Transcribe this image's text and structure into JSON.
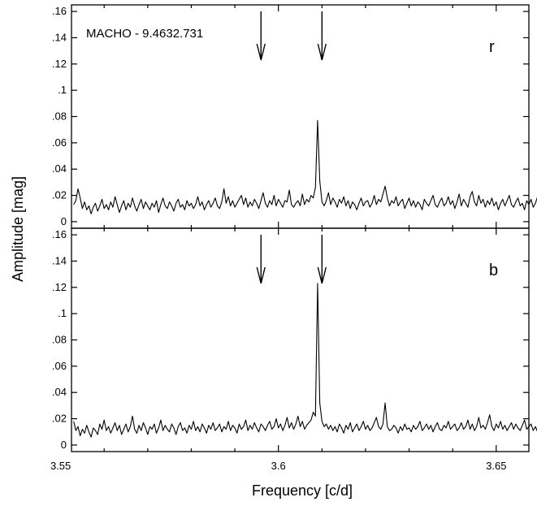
{
  "chart_data": {
    "type": "line",
    "xlabel": "Frequency [c/d]",
    "ylabel": "Amplitude [mag]",
    "xlim": [
      3.5525,
      3.6575
    ],
    "x_ticks": [
      3.55,
      3.6,
      3.65
    ],
    "x_tick_labels": [
      "3.55",
      "3.6",
      "3.65"
    ],
    "grid": false,
    "panels": [
      {
        "id": "top",
        "band_label": "r",
        "annotation": "MACHO - 9.4632.731",
        "ylim": [
          -0.005,
          0.165
        ],
        "y_ticks": [
          0,
          0.02,
          0.04,
          0.06,
          0.08,
          0.1,
          0.12,
          0.14,
          0.16
        ],
        "y_tick_labels": [
          "0",
          ".02",
          ".04",
          ".06",
          ".08",
          ".1",
          ".12",
          ".14",
          ".16"
        ],
        "arrows_x": [
          3.596,
          3.61
        ],
        "series": [
          {
            "x_start": 3.553,
            "x_step": 0.0005,
            "values": [
              0.013,
              0.016,
              0.025,
              0.018,
              0.01,
              0.015,
              0.009,
              0.012,
              0.006,
              0.011,
              0.014,
              0.008,
              0.012,
              0.017,
              0.01,
              0.013,
              0.009,
              0.015,
              0.011,
              0.019,
              0.013,
              0.007,
              0.012,
              0.016,
              0.009,
              0.014,
              0.011,
              0.018,
              0.012,
              0.008,
              0.013,
              0.017,
              0.01,
              0.015,
              0.012,
              0.009,
              0.014,
              0.011,
              0.016,
              0.007,
              0.013,
              0.018,
              0.012,
              0.01,
              0.015,
              0.012,
              0.008,
              0.014,
              0.017,
              0.011,
              0.013,
              0.009,
              0.016,
              0.012,
              0.014,
              0.01,
              0.013,
              0.019,
              0.012,
              0.015,
              0.009,
              0.013,
              0.016,
              0.011,
              0.014,
              0.018,
              0.012,
              0.01,
              0.015,
              0.025,
              0.014,
              0.019,
              0.012,
              0.016,
              0.011,
              0.014,
              0.017,
              0.02,
              0.013,
              0.018,
              0.011,
              0.015,
              0.012,
              0.017,
              0.014,
              0.01,
              0.016,
              0.022,
              0.014,
              0.011,
              0.016,
              0.013,
              0.02,
              0.012,
              0.017,
              0.014,
              0.011,
              0.016,
              0.015,
              0.024,
              0.013,
              0.011,
              0.014,
              0.016,
              0.012,
              0.021,
              0.013,
              0.017,
              0.015,
              0.02,
              0.018,
              0.026,
              0.077,
              0.031,
              0.015,
              0.012,
              0.016,
              0.022,
              0.013,
              0.018,
              0.015,
              0.011,
              0.017,
              0.014,
              0.019,
              0.012,
              0.016,
              0.01,
              0.015,
              0.013,
              0.009,
              0.014,
              0.018,
              0.012,
              0.015,
              0.016,
              0.011,
              0.014,
              0.02,
              0.013,
              0.017,
              0.015,
              0.021,
              0.027,
              0.018,
              0.012,
              0.016,
              0.014,
              0.019,
              0.012,
              0.015,
              0.017,
              0.01,
              0.014,
              0.018,
              0.012,
              0.016,
              0.011,
              0.015,
              0.013,
              0.009,
              0.017,
              0.014,
              0.012,
              0.016,
              0.02,
              0.013,
              0.011,
              0.015,
              0.018,
              0.012,
              0.014,
              0.019,
              0.013,
              0.016,
              0.01,
              0.015,
              0.021,
              0.012,
              0.017,
              0.014,
              0.011,
              0.019,
              0.023,
              0.015,
              0.012,
              0.02,
              0.014,
              0.017,
              0.011,
              0.016,
              0.013,
              0.018,
              0.012,
              0.015,
              0.009,
              0.014,
              0.017,
              0.012,
              0.016,
              0.02,
              0.013,
              0.011,
              0.015,
              0.018,
              0.012,
              0.014,
              0.009,
              0.016,
              0.013,
              0.017,
              0.011,
              0.014,
              0.019,
              0.012,
              0.015,
              0.022,
              0.013,
              0.017,
              0.011,
              0.014,
              0.025,
              0.013,
              0.018,
              0.012,
              0.016,
              0.01,
              0.027,
              0.014,
              0.009,
              0.019,
              0.013,
              0.031,
              0.016,
              0.012,
              0.018,
              0.01,
              0.015,
              0.013,
              0.017,
              0.011,
              0.014,
              0.021,
              0.012,
              0.016,
              0.013,
              0.019,
              0.011,
              0.014,
              0.012,
              0.015
            ]
          }
        ]
      },
      {
        "id": "bottom",
        "band_label": "b",
        "annotation": "",
        "ylim": [
          -0.005,
          0.165
        ],
        "y_ticks": [
          0,
          0.02,
          0.04,
          0.06,
          0.08,
          0.1,
          0.12,
          0.14,
          0.16
        ],
        "y_tick_labels": [
          "0",
          ".02",
          ".04",
          ".06",
          ".08",
          ".1",
          ".12",
          ".14",
          ".16"
        ],
        "arrows_x": [
          3.596,
          3.61
        ],
        "series": [
          {
            "x_start": 3.553,
            "x_step": 0.0005,
            "values": [
              0.018,
              0.011,
              0.014,
              0.007,
              0.012,
              0.009,
              0.015,
              0.01,
              0.006,
              0.013,
              0.011,
              0.008,
              0.016,
              0.012,
              0.019,
              0.011,
              0.014,
              0.009,
              0.013,
              0.017,
              0.011,
              0.015,
              0.008,
              0.012,
              0.016,
              0.01,
              0.014,
              0.022,
              0.012,
              0.009,
              0.015,
              0.011,
              0.017,
              0.013,
              0.008,
              0.014,
              0.012,
              0.016,
              0.009,
              0.013,
              0.019,
              0.011,
              0.015,
              0.012,
              0.01,
              0.016,
              0.013,
              0.008,
              0.014,
              0.017,
              0.011,
              0.013,
              0.009,
              0.015,
              0.012,
              0.018,
              0.011,
              0.014,
              0.01,
              0.016,
              0.013,
              0.009,
              0.015,
              0.012,
              0.017,
              0.011,
              0.013,
              0.016,
              0.01,
              0.014,
              0.012,
              0.018,
              0.011,
              0.015,
              0.013,
              0.009,
              0.016,
              0.012,
              0.014,
              0.019,
              0.011,
              0.015,
              0.012,
              0.017,
              0.013,
              0.01,
              0.016,
              0.014,
              0.011,
              0.015,
              0.018,
              0.012,
              0.014,
              0.02,
              0.013,
              0.016,
              0.011,
              0.015,
              0.021,
              0.013,
              0.017,
              0.012,
              0.016,
              0.022,
              0.014,
              0.018,
              0.012,
              0.015,
              0.017,
              0.019,
              0.025,
              0.022,
              0.123,
              0.032,
              0.018,
              0.014,
              0.016,
              0.012,
              0.015,
              0.011,
              0.014,
              0.01,
              0.016,
              0.013,
              0.009,
              0.015,
              0.012,
              0.017,
              0.01,
              0.013,
              0.016,
              0.011,
              0.014,
              0.018,
              0.012,
              0.015,
              0.011,
              0.013,
              0.017,
              0.021,
              0.014,
              0.012,
              0.016,
              0.032,
              0.014,
              0.011,
              0.012,
              0.015,
              0.013,
              0.009,
              0.014,
              0.011,
              0.016,
              0.012,
              0.013,
              0.01,
              0.015,
              0.012,
              0.014,
              0.018,
              0.011,
              0.013,
              0.016,
              0.012,
              0.015,
              0.01,
              0.014,
              0.017,
              0.012,
              0.011,
              0.015,
              0.013,
              0.018,
              0.012,
              0.014,
              0.016,
              0.011,
              0.013,
              0.017,
              0.012,
              0.014,
              0.019,
              0.012,
              0.016,
              0.011,
              0.014,
              0.021,
              0.013,
              0.015,
              0.012,
              0.017,
              0.023,
              0.014,
              0.011,
              0.016,
              0.013,
              0.018,
              0.012,
              0.015,
              0.011,
              0.014,
              0.017,
              0.012,
              0.016,
              0.013,
              0.011,
              0.015,
              0.019,
              0.012,
              0.014,
              0.016,
              0.011,
              0.014,
              0.01,
              0.017,
              0.013,
              0.012,
              0.016,
              0.011,
              0.014,
              0.013,
              0.024,
              0.012,
              0.015,
              0.011,
              0.016,
              0.013,
              0.02,
              0.012,
              0.015,
              0.011,
              0.013,
              0.016,
              0.01,
              0.014,
              0.012,
              0.017,
              0.011,
              0.013,
              0.012,
              0.009,
              0.012,
              0.011,
              0.008,
              0.01,
              0.011,
              0.008,
              0.007
            ]
          }
        ]
      }
    ]
  }
}
